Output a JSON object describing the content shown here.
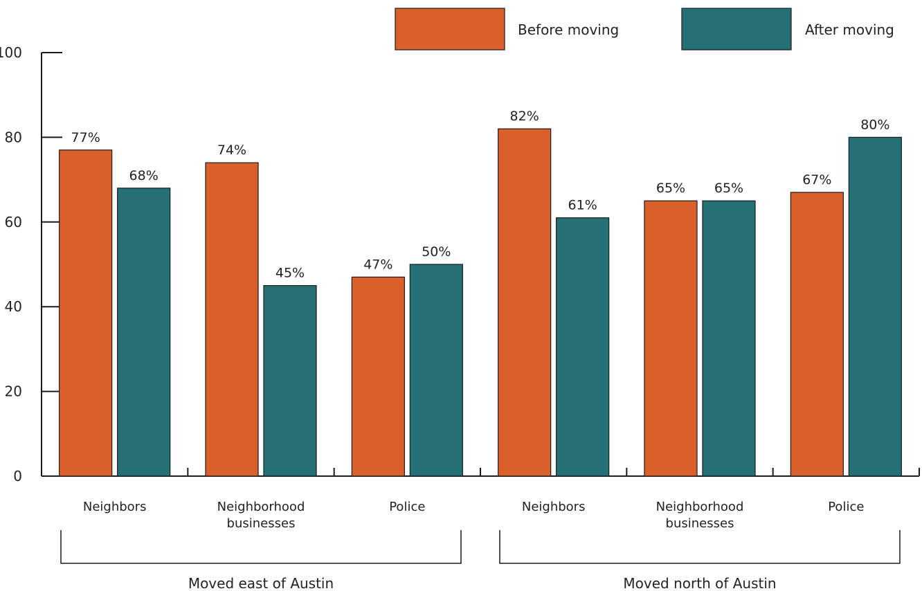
{
  "chart_data": {
    "type": "bar",
    "title": "",
    "xlabel": "",
    "ylabel": "",
    "ylim": [
      0,
      100
    ],
    "yticks": [
      0,
      20,
      40,
      60,
      80,
      100
    ],
    "grid": false,
    "legend_position": "top-right",
    "categories": [
      "Neighbors",
      "Neighborhood businesses",
      "Police",
      "Neighbors",
      "Neighborhood businesses",
      "Police"
    ],
    "category_lines": [
      [
        "Neighbors"
      ],
      [
        "Neighborhood",
        "businesses"
      ],
      [
        "Police"
      ],
      [
        "Neighbors"
      ],
      [
        "Neighborhood",
        "businesses"
      ],
      [
        "Police"
      ]
    ],
    "groups": [
      {
        "label": "Moved east of Austin",
        "categories": [
          0,
          1,
          2
        ]
      },
      {
        "label": "Moved north of Austin",
        "categories": [
          3,
          4,
          5
        ]
      }
    ],
    "series": [
      {
        "name": "Before moving",
        "color": "#d9602a",
        "values": [
          77,
          74,
          47,
          82,
          65,
          67
        ],
        "labels": [
          "77%",
          "74%",
          "47%",
          "82%",
          "65%",
          "67%"
        ]
      },
      {
        "name": "After moving",
        "color": "#247075",
        "values": [
          68,
          45,
          50,
          61,
          65,
          80
        ],
        "labels": [
          "68%",
          "45%",
          "50%",
          "61%",
          "65%",
          "80%"
        ]
      }
    ]
  }
}
